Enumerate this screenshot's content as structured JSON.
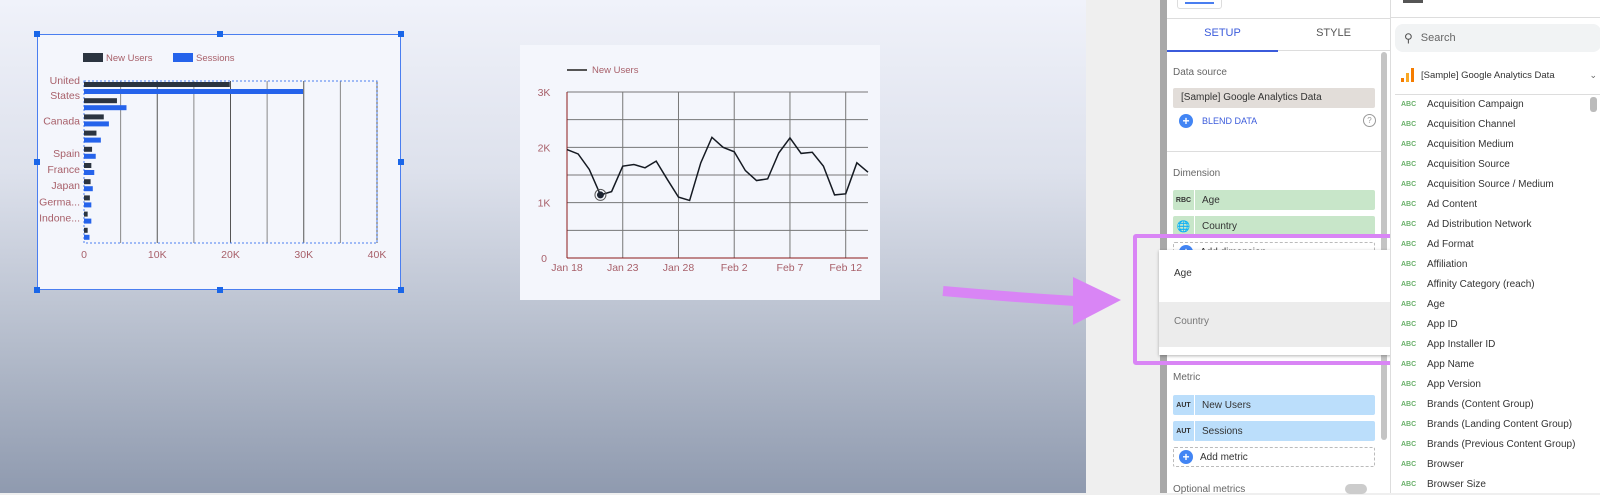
{
  "colors": {
    "new_users": "#2b3440",
    "sessions": "#2563eb",
    "chart_text": "#a8606a",
    "highlight": "#d985f5"
  },
  "chart_data": [
    {
      "type": "bar",
      "orientation": "horizontal",
      "legend": [
        "New Users",
        "Sessions"
      ],
      "categories": [
        "United States",
        "",
        "Canada",
        "",
        "Spain",
        "France",
        "Japan",
        "Germa...",
        "Indone...",
        ""
      ],
      "series": [
        {
          "name": "New Users",
          "values": [
            19900,
            4500,
            2700,
            1700,
            1100,
            1000,
            900,
            800,
            500,
            500
          ]
        },
        {
          "name": "Sessions",
          "values": [
            29900,
            5800,
            3400,
            2300,
            1600,
            1400,
            1200,
            1000,
            1000,
            750
          ]
        }
      ],
      "xlim": [
        0,
        40000
      ],
      "xticks": [
        "0",
        "10K",
        "20K",
        "30K",
        "40K"
      ],
      "grid": true
    },
    {
      "type": "line",
      "legend": [
        "New Users"
      ],
      "x": [
        "Jan 18",
        "Jan 19",
        "Jan 20",
        "Jan 21",
        "Jan 22",
        "Jan 23",
        "Jan 24",
        "Jan 25",
        "Jan 26",
        "Jan 27",
        "Jan 28",
        "Jan 29",
        "Jan 30",
        "Jan 31",
        "Feb 1",
        "Feb 2",
        "Feb 3",
        "Feb 4",
        "Feb 5",
        "Feb 6",
        "Feb 7",
        "Feb 8",
        "Feb 9",
        "Feb 10",
        "Feb 11",
        "Feb 12",
        "Feb 13",
        "Feb 14"
      ],
      "series": [
        {
          "name": "New Users",
          "values": [
            1960,
            1880,
            1600,
            1140,
            1200,
            1660,
            1690,
            1630,
            1750,
            1420,
            1100,
            1040,
            1720,
            2180,
            2000,
            1920,
            1580,
            1400,
            1430,
            1900,
            2170,
            1890,
            1910,
            1660,
            1140,
            1160,
            1720,
            1550
          ]
        }
      ],
      "ylim": [
        0,
        3000
      ],
      "yticks": [
        "0",
        "1K",
        "2K",
        "3K"
      ],
      "xticks": [
        "Jan 18",
        "Jan 23",
        "Jan 28",
        "Feb 2",
        "Feb 7",
        "Feb 12"
      ],
      "highlighted_point": "Jan 21",
      "grid": true
    }
  ],
  "panel": {
    "tabs": [
      "SETUP",
      "STYLE"
    ],
    "active_tab": "SETUP",
    "data_source_label": "Data source",
    "data_source": "[Sample] Google Analytics Data",
    "blend": "BLEND DATA",
    "dimension_label": "Dimension",
    "dimensions": [
      {
        "type": "RBC",
        "name": "Age"
      },
      {
        "type": "globe",
        "name": "Country"
      }
    ],
    "add_dimension": "Add dimension",
    "dropdown": [
      "Age",
      "Country"
    ],
    "metric_label": "Metric",
    "metrics": [
      {
        "type": "AUT",
        "name": "New Users"
      },
      {
        "type": "AUT",
        "name": "Sessions"
      }
    ],
    "add_metric": "Add metric",
    "optional_metrics": "Optional metrics"
  },
  "fields": {
    "search_placeholder": "Search",
    "source": "[Sample] Google Analytics Data",
    "type_tag": "ABC",
    "items": [
      "Acquisition Campaign",
      "Acquisition Channel",
      "Acquisition Medium",
      "Acquisition Source",
      "Acquisition Source / Medium",
      "Ad Content",
      "Ad Distribution Network",
      "Ad Format",
      "Affiliation",
      "Affinity Category (reach)",
      "Age",
      "App ID",
      "App Installer ID",
      "App Name",
      "App Version",
      "Brands (Content Group)",
      "Brands (Landing Content Group)",
      "Brands (Previous Content Group)",
      "Browser",
      "Browser Size"
    ]
  }
}
